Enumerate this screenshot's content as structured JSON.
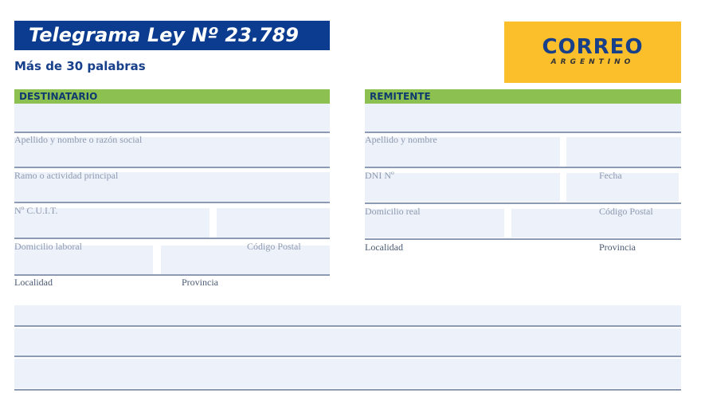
{
  "header": {
    "title": "Telegrama Ley Nº 23.789",
    "subtitle": "Más de 30 palabras"
  },
  "logo": {
    "main": "CORREO",
    "sub": "ARGENTINO",
    "colors": {
      "background": "#fbbf2c",
      "text": "#173f8a"
    }
  },
  "destinatario": {
    "heading": "DESTINATARIO",
    "fields": {
      "name": "Apellido y nombre o razón social",
      "ramo": "Ramo o actividad principal",
      "cuit": "Nº C.U.I.T.",
      "domicilio": "Domicilio laboral",
      "cp": "Código Postal",
      "localidad": "Localidad",
      "provincia": "Provincia"
    }
  },
  "remitente": {
    "heading": "REMITENTE",
    "fields": {
      "name": "Apellido y nombre",
      "dni": "DNI Nº",
      "fecha": "Fecha",
      "domicilio": "Domicilio real",
      "cp": "Código Postal",
      "localidad": "Localidad",
      "provincia": "Provincia"
    }
  },
  "colors": {
    "title_bar": "#0b3c8f",
    "section_header": "#8cc152",
    "field_fill": "#edf1f9"
  }
}
